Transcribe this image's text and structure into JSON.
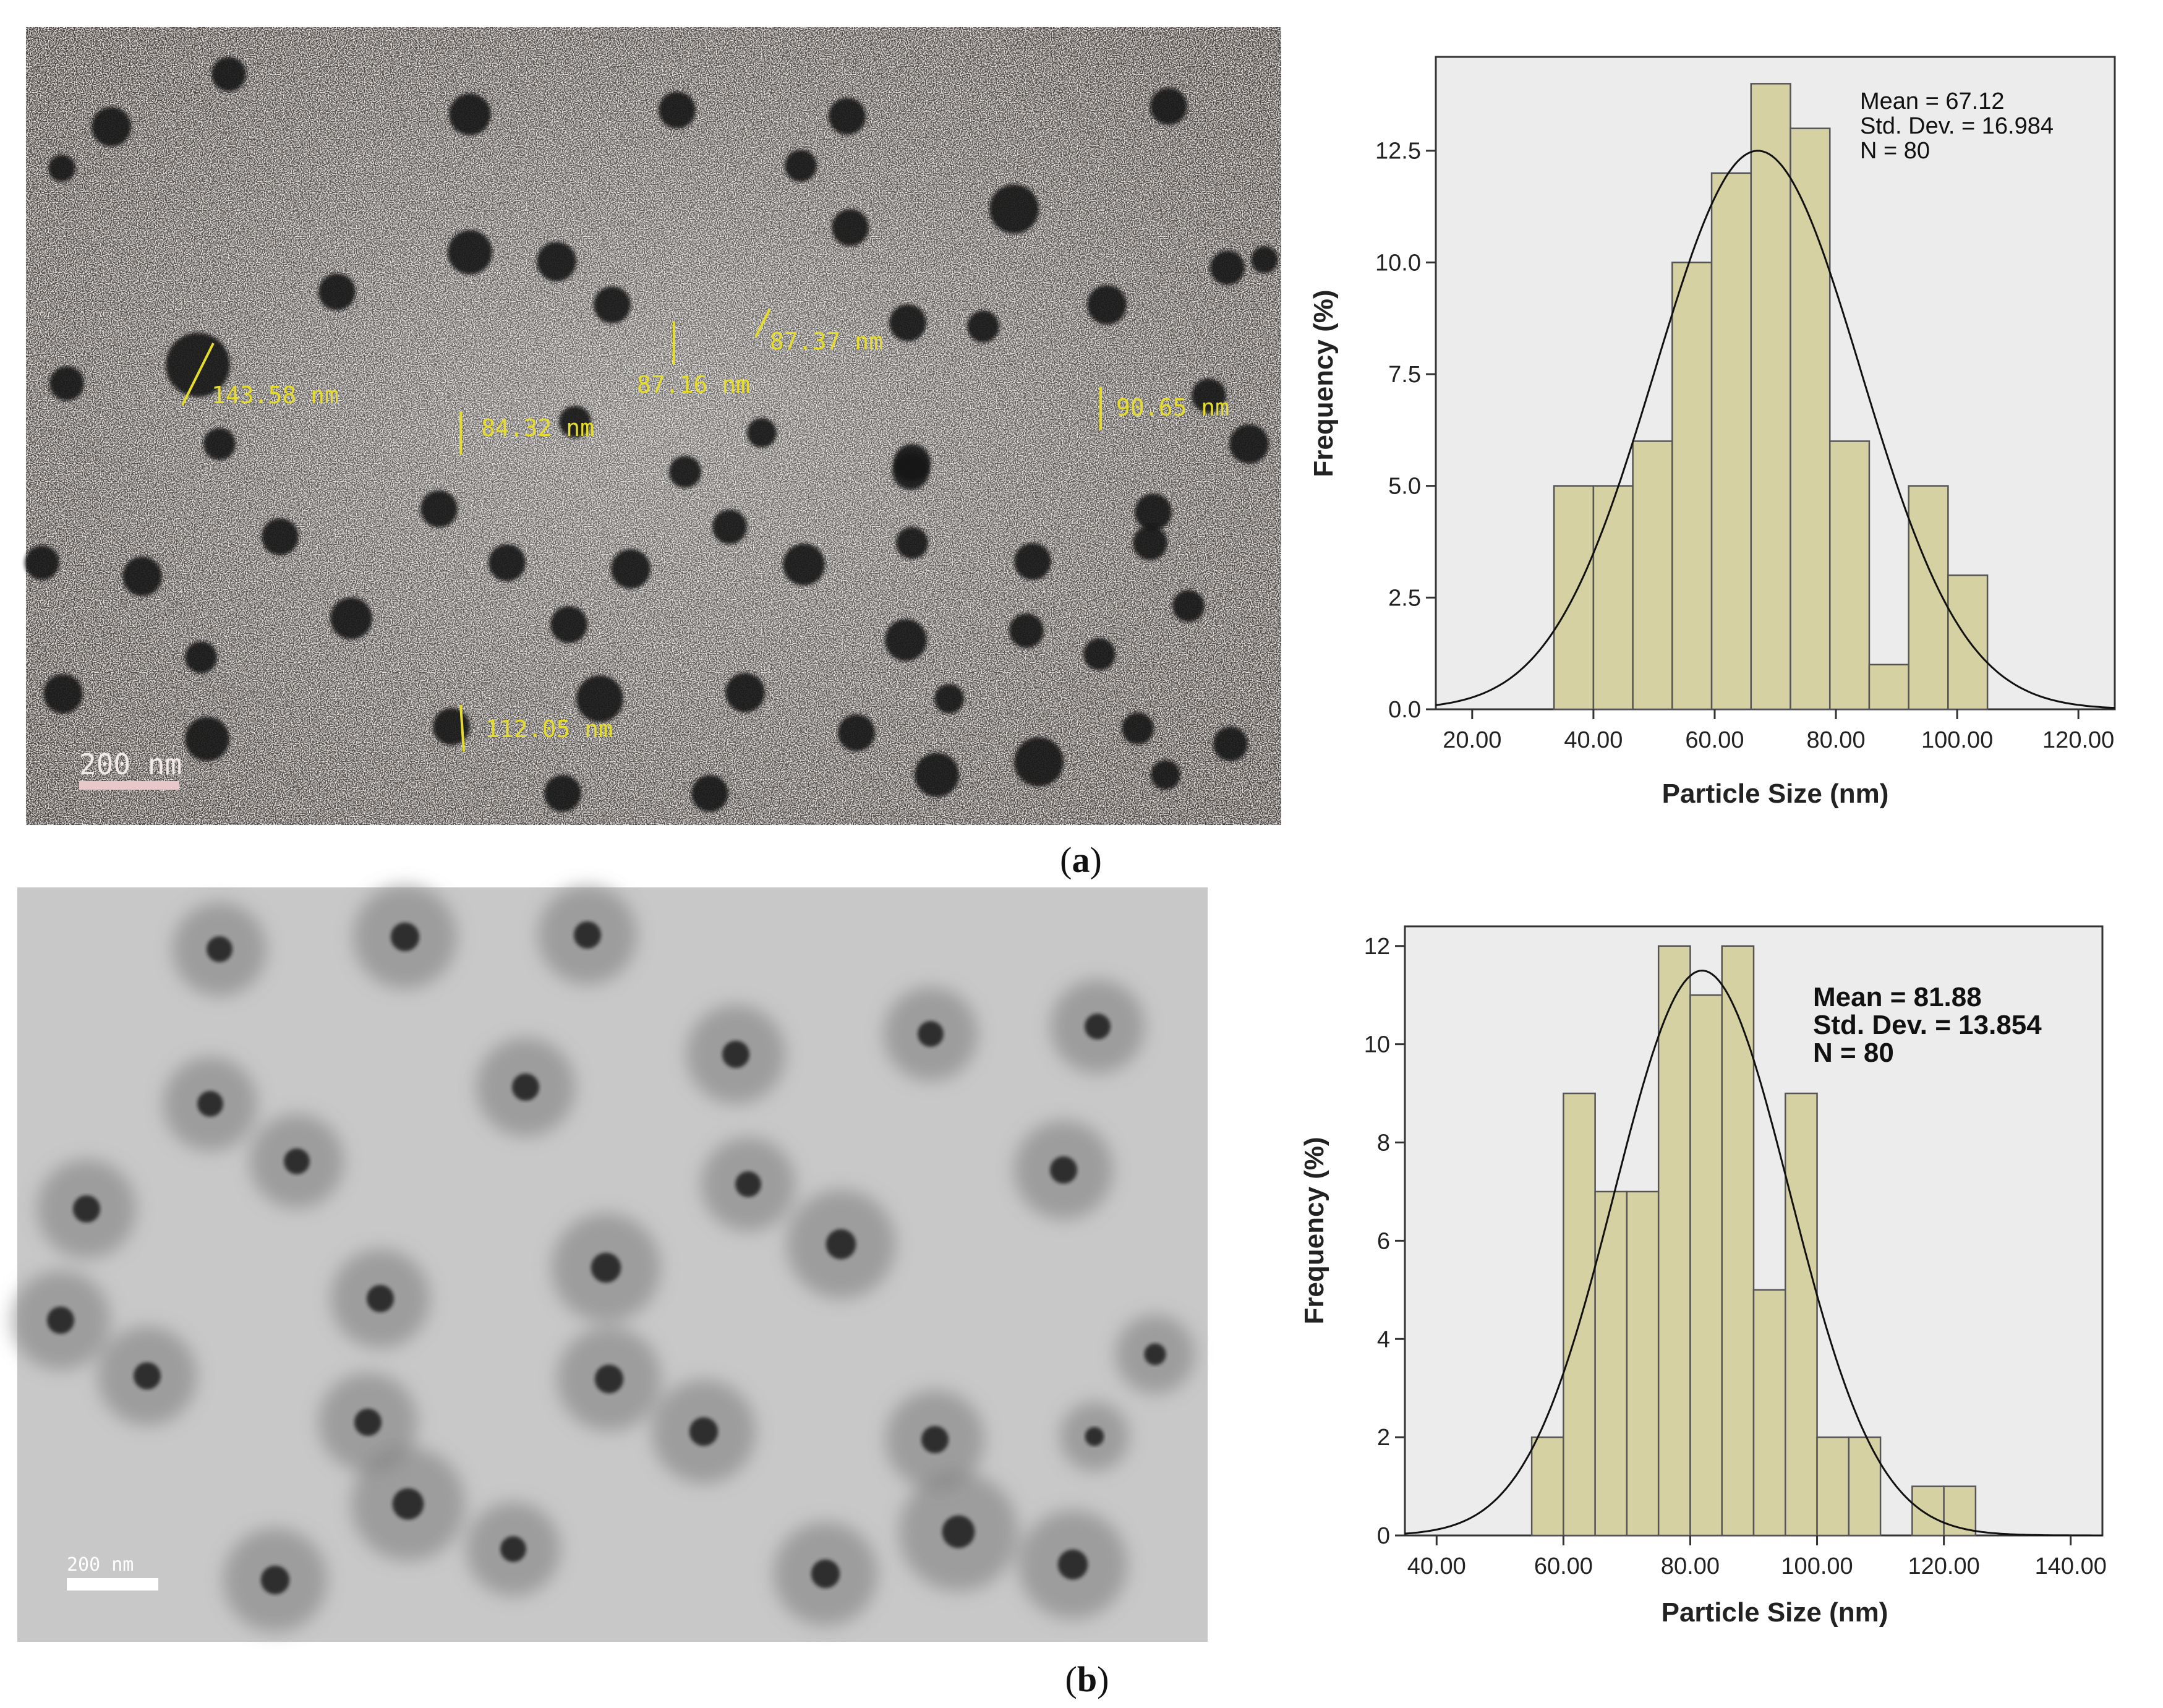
{
  "panels": {
    "a": {
      "label_open": "(",
      "label_letter": "a",
      "label_close": ")"
    },
    "b": {
      "label_open": "(",
      "label_letter": "b",
      "label_close": ")"
    }
  },
  "tem_a": {
    "scale_bar": "200 nm",
    "measurements": [
      "143.58 nm",
      "84.32 nm",
      "87.16 nm",
      "87.37 nm",
      "90.65 nm",
      "112.05 nm"
    ]
  },
  "tem_b": {
    "scale_bar": "200 nm"
  },
  "colors": {
    "bar_fill": "#d6d1a2",
    "bar_stroke": "#555555",
    "plot_bg": "#ececec",
    "curve": "#111111",
    "tem_label": "#e6dc2a"
  },
  "chart_data": [
    {
      "type": "bar",
      "subtype": "histogram-with-normal-curve",
      "xlabel": "Particle Size (nm)",
      "ylabel": "Frequency (%)",
      "xlim": [
        14,
        126
      ],
      "ylim": [
        0,
        14.6
      ],
      "xticks": [
        20,
        40,
        60,
        80,
        100,
        120
      ],
      "xtick_labels": [
        "20.00",
        "40.00",
        "60.00",
        "80.00",
        "100.00",
        "120.00"
      ],
      "yticks": [
        0,
        2.5,
        5,
        7.5,
        10,
        12.5
      ],
      "ytick_labels": [
        "0.0",
        "2.5",
        "5.0",
        "7.5",
        "10.0",
        "12.5"
      ],
      "bin_edges": [
        33.5,
        40.0,
        46.5,
        53.0,
        59.5,
        66.0,
        72.5,
        79.0,
        85.5,
        92.0,
        98.5,
        105.0
      ],
      "values": [
        5,
        5,
        6,
        10,
        12,
        14,
        13,
        6,
        1,
        5,
        3
      ],
      "normal_curve": {
        "mean": 67.12,
        "sd": 16.984,
        "peak": 12.5
      },
      "stats": [
        "Mean = 67.12",
        "Std. Dev. = 16.984",
        "N = 80"
      ]
    },
    {
      "type": "bar",
      "subtype": "histogram-with-normal-curve",
      "xlabel": "Particle Size (nm)",
      "ylabel": "Frequency (%)",
      "xlim": [
        35,
        145
      ],
      "ylim": [
        0,
        12.4
      ],
      "xticks": [
        40,
        60,
        80,
        100,
        120,
        140
      ],
      "xtick_labels": [
        "40.00",
        "60.00",
        "80.00",
        "100.00",
        "120.00",
        "140.00"
      ],
      "yticks": [
        0,
        2,
        4,
        6,
        8,
        10,
        12
      ],
      "ytick_labels": [
        "0",
        "2",
        "4",
        "6",
        "8",
        "10",
        "12"
      ],
      "bin_edges": [
        55,
        60,
        65,
        70,
        75,
        80,
        85,
        90,
        95,
        100,
        105,
        110,
        115,
        120,
        125
      ],
      "values": [
        2,
        9,
        7,
        7,
        12,
        11,
        12,
        5,
        9,
        2,
        2,
        0,
        1,
        1
      ],
      "normal_curve": {
        "mean": 81.88,
        "sd": 13.854,
        "peak": 11.5
      },
      "stats": [
        "Mean = 81.88",
        "Std. Dev. = 13.854",
        "N = 80"
      ]
    }
  ]
}
